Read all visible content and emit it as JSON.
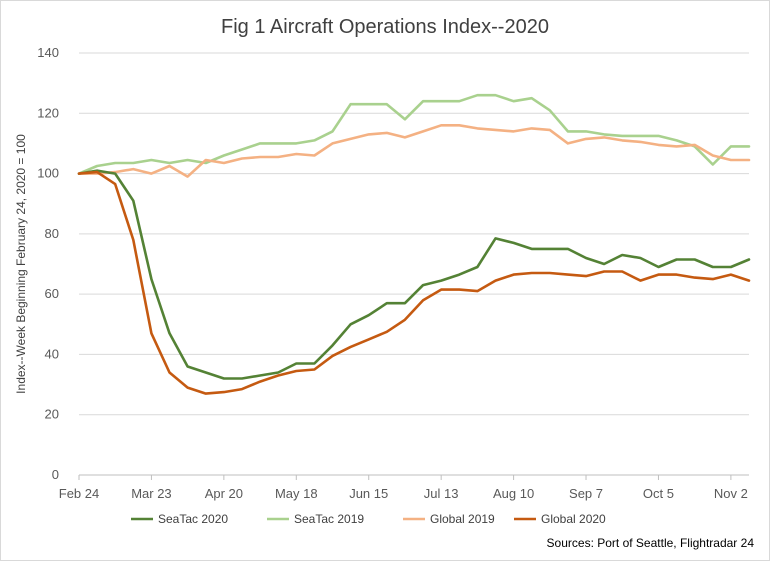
{
  "chart_data": {
    "type": "line",
    "title": "Fig 1 Aircraft Operations Index--2020",
    "xlabel": "",
    "ylabel": "Index--Week Beginning February 24, 2020 = 100",
    "ylim": [
      0,
      140
    ],
    "yticks": [
      0,
      20,
      40,
      60,
      80,
      100,
      120,
      140
    ],
    "x": [
      "Feb 24",
      "Mar 2",
      "Mar 9",
      "Mar 16",
      "Mar 23",
      "Mar 30",
      "Apr 6",
      "Apr 13",
      "Apr 20",
      "Apr 27",
      "May 4",
      "May 11",
      "May 18",
      "May 25",
      "Jun 1",
      "Jun 8",
      "Jun 15",
      "Jun 22",
      "Jun 29",
      "Jul 6",
      "Jul 13",
      "Jul 20",
      "Jul 27",
      "Aug 3",
      "Aug 10",
      "Aug 17",
      "Aug 24",
      "Aug 31",
      "Sep 7",
      "Sep 14",
      "Sep 21",
      "Sep 28",
      "Oct 5",
      "Oct 12",
      "Oct 19",
      "Oct 26",
      "Nov 2",
      "Nov 9"
    ],
    "xtick_labels": [
      "Feb 24",
      "Mar 23",
      "Apr 20",
      "May 18",
      "Jun 15",
      "Jul 13",
      "Aug 10",
      "Sep 7",
      "Oct 5",
      "Nov 2"
    ],
    "grid": "horizontal",
    "legend_position": "bottom",
    "series": [
      {
        "name": "SeaTac 2020",
        "color": "#548235",
        "values": [
          100,
          101,
          100,
          91,
          65,
          47,
          36,
          34,
          32,
          32,
          33,
          34,
          37,
          37,
          43,
          50,
          53,
          57,
          57,
          63,
          64.5,
          66.5,
          69,
          78.5,
          77,
          75,
          75,
          75,
          72,
          70,
          73,
          72,
          69,
          71.5,
          71.5,
          69,
          69,
          71.5
        ]
      },
      {
        "name": "SeaTac 2019",
        "color": "#A9D18E",
        "values": [
          100,
          102.5,
          103.5,
          103.5,
          104.5,
          103.5,
          104.5,
          103.5,
          106,
          108,
          110,
          110,
          110,
          111,
          114,
          123,
          123,
          123,
          118,
          124,
          124,
          124,
          126,
          126,
          124,
          125,
          121,
          114,
          114,
          113,
          112.5,
          112.5,
          112.5,
          111,
          109,
          103,
          109,
          109
        ]
      },
      {
        "name": "Global 2019",
        "color": "#F4B183",
        "values": [
          100,
          100,
          100.5,
          101.5,
          100,
          102.5,
          99,
          104.5,
          103.5,
          105,
          105.5,
          105.5,
          106.5,
          106,
          110,
          111.5,
          113,
          113.5,
          112,
          114,
          116,
          116,
          115,
          114.5,
          114,
          115,
          114.5,
          110,
          111.5,
          112,
          111,
          110.5,
          109.5,
          109,
          109.5,
          106,
          104.5,
          104.5
        ]
      },
      {
        "name": "Global 2020",
        "color": "#C55A11",
        "values": [
          100,
          100.5,
          96.5,
          78,
          47,
          34,
          29,
          27,
          27.5,
          28.5,
          31,
          33,
          34.5,
          35,
          39.5,
          42.5,
          45,
          47.5,
          51.5,
          58,
          61.5,
          61.5,
          61,
          64.5,
          66.5,
          67,
          67,
          66.5,
          66,
          67.5,
          67.5,
          64.5,
          66.5,
          66.5,
          65.5,
          65,
          66.5,
          64.5
        ]
      }
    ]
  },
  "source_note": "Sources: Port of Seattle, Flightradar 24"
}
